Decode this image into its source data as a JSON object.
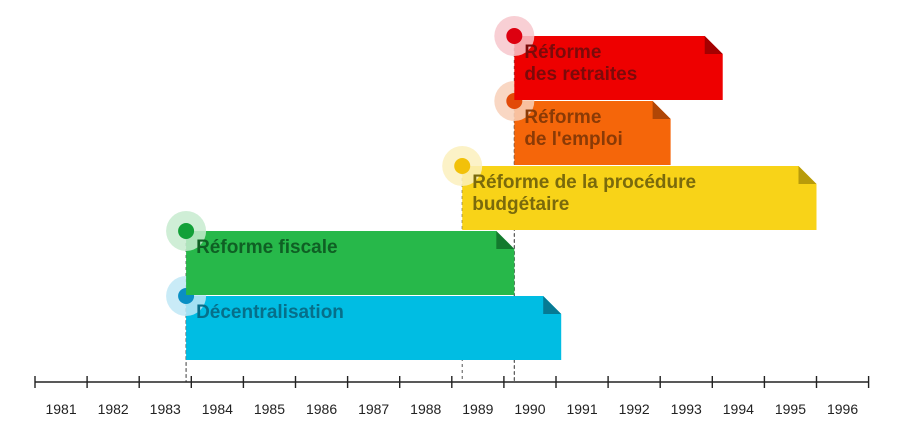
{
  "chart_data": {
    "type": "timeline",
    "axis": {
      "ticks": [
        "1981",
        "1982",
        "1983",
        "1984",
        "1985",
        "1986",
        "1987",
        "1988",
        "1989",
        "1990",
        "1991",
        "1992",
        "1993",
        "1994",
        "1995",
        "1996"
      ]
    },
    "events": [
      {
        "label_lines": [
          "Décentralisation"
        ],
        "start": 1983.9,
        "end": 1991.1,
        "color": "#00bde3",
        "fold": "#067a94",
        "text": "#066f8a",
        "dot": "#0a8fc4",
        "halo": "#bfe8f6"
      },
      {
        "label_lines": [
          "Réforme fiscale"
        ],
        "start": 1983.9,
        "end": 1990.2,
        "color": "#27b84a",
        "fold": "#137a2e",
        "text": "#0f5f24",
        "dot": "#12a038",
        "halo": "#c7ebcf"
      },
      {
        "label_lines": [
          "Réforme de la procédure",
          "budgétaire"
        ],
        "start": 1989.2,
        "end": 1996.0,
        "color": "#f8d318",
        "fold": "#b89b0a",
        "text": "#7a6a0c",
        "dot": "#f2c10a",
        "halo": "#fbf0bd"
      },
      {
        "label_lines": [
          "Réforme",
          "de l'emploi"
        ],
        "start": 1990.2,
        "end": 1993.2,
        "color": "#f5660a",
        "fold": "#b04606",
        "text": "#8a3a06",
        "dot": "#e24a08",
        "halo": "#f8d0b8"
      },
      {
        "label_lines": [
          "Réforme",
          "des retraites"
        ],
        "start": 1990.2,
        "end": 1994.2,
        "color": "#ee0000",
        "fold": "#a30000",
        "text": "#7c0a0a",
        "dot": "#dd0010",
        "halo": "#f7c7cc"
      }
    ]
  }
}
